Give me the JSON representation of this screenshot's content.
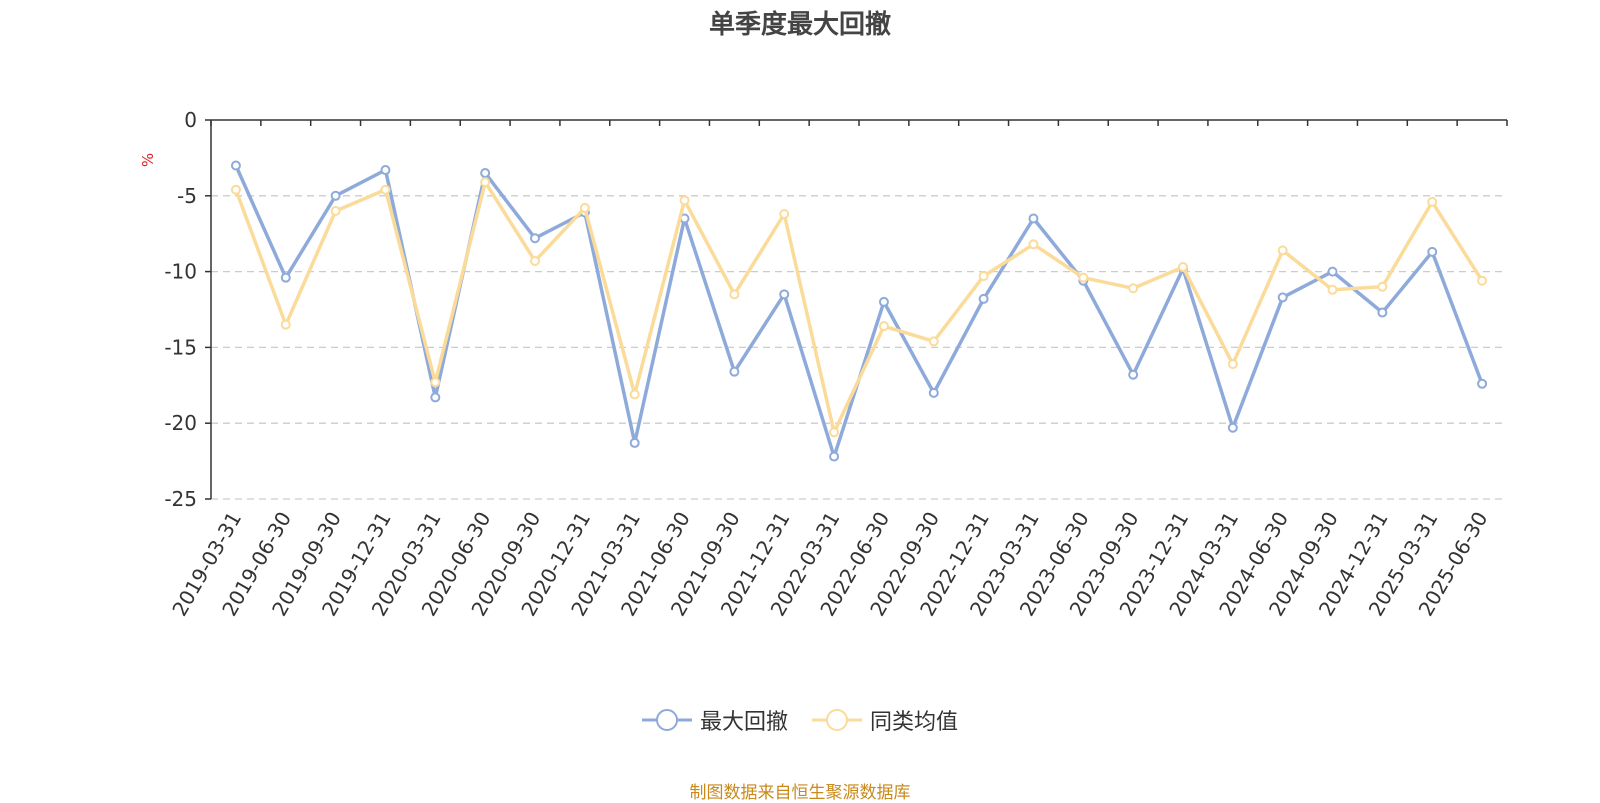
{
  "chart_data": {
    "type": "line",
    "title": "单季度最大回撤",
    "ylabel": "%",
    "xlabel": "",
    "ylim": [
      -25,
      0
    ],
    "yticks": [
      0,
      -5,
      -10,
      -15,
      -20,
      -25
    ],
    "grid": true,
    "legend_position": "bottom-center",
    "categories": [
      "2019-03-31",
      "2019-06-30",
      "2019-09-30",
      "2019-12-31",
      "2020-03-31",
      "2020-06-30",
      "2020-09-30",
      "2020-12-31",
      "2021-03-31",
      "2021-06-30",
      "2021-09-30",
      "2021-12-31",
      "2022-03-31",
      "2022-06-30",
      "2022-09-30",
      "2022-12-31",
      "2023-03-31",
      "2023-06-30",
      "2023-09-30",
      "2023-12-31",
      "2024-03-31",
      "2024-06-30",
      "2024-09-30",
      "2024-12-31",
      "2025-03-31",
      "2025-06-30"
    ],
    "series": [
      {
        "name": "最大回撤",
        "color": "#8eaadb",
        "values": [
          -3.0,
          -10.4,
          -5.0,
          -3.3,
          -18.3,
          -3.5,
          -7.8,
          -6.1,
          -21.3,
          -6.5,
          -16.6,
          -11.5,
          -22.2,
          -12.0,
          -18.0,
          -11.8,
          -6.5,
          -10.6,
          -16.8,
          -9.8,
          -20.3,
          -11.7,
          -10.0,
          -12.7,
          -8.7,
          -17.4
        ]
      },
      {
        "name": "同类均值",
        "color": "#fbdb9a",
        "values": [
          -4.6,
          -13.5,
          -6.0,
          -4.6,
          -17.3,
          -4.1,
          -9.3,
          -5.8,
          -18.1,
          -5.3,
          -11.5,
          -6.2,
          -20.6,
          -13.6,
          -14.6,
          -10.3,
          -8.2,
          -10.4,
          -11.1,
          -9.7,
          -16.1,
          -8.6,
          -11.2,
          -11.0,
          -5.4,
          -10.6
        ]
      }
    ]
  },
  "footer": {
    "source": "制图数据来自恒生聚源数据库"
  }
}
